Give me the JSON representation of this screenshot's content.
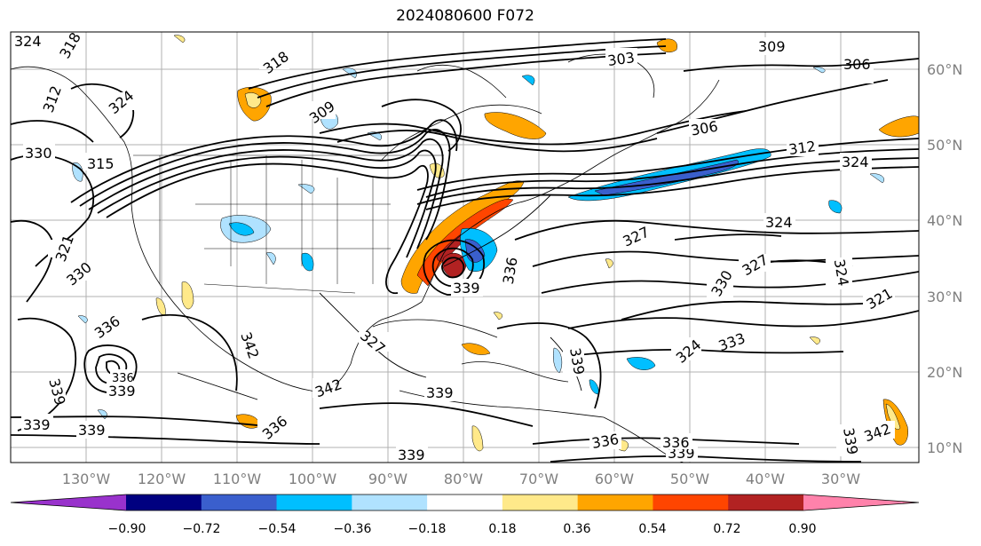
{
  "title": "2024080600 F072",
  "longitude_labels": [
    "130°W",
    "120°W",
    "110°W",
    "100°W",
    "90°W",
    "80°W",
    "70°W",
    "60°W",
    "50°W",
    "40°W",
    "30°W"
  ],
  "latitude_labels": [
    "60°N",
    "50°N",
    "40°N",
    "30°N",
    "20°N",
    "10°N"
  ],
  "contour_labels": [
    "324",
    "318",
    "312",
    "324",
    "318",
    "309",
    "303",
    "309",
    "306",
    "330",
    "315",
    "306",
    "312",
    "324",
    "321",
    "327",
    "324",
    "330",
    "327",
    "324",
    "321",
    "330",
    "336",
    "339",
    "336",
    "336",
    "342",
    "327",
    "333",
    "324",
    "339",
    "336",
    "339",
    "339",
    "339",
    "342",
    "339",
    "339",
    "336",
    "339",
    "339",
    "342",
    "339",
    "336"
  ],
  "colorbar": {
    "ticks": [
      "−0.90",
      "−0.72",
      "−0.54",
      "−0.36",
      "−0.18",
      "0.18",
      "0.36",
      "0.54",
      "0.72",
      "0.90"
    ],
    "colors": [
      "#9932cc",
      "#000080",
      "#3a5fcd",
      "#00bfff",
      "#b0e2ff",
      "#ffffff",
      "#ffe98a",
      "#ffa500",
      "#ff4500",
      "#b22222",
      "#ff82ab"
    ]
  }
}
